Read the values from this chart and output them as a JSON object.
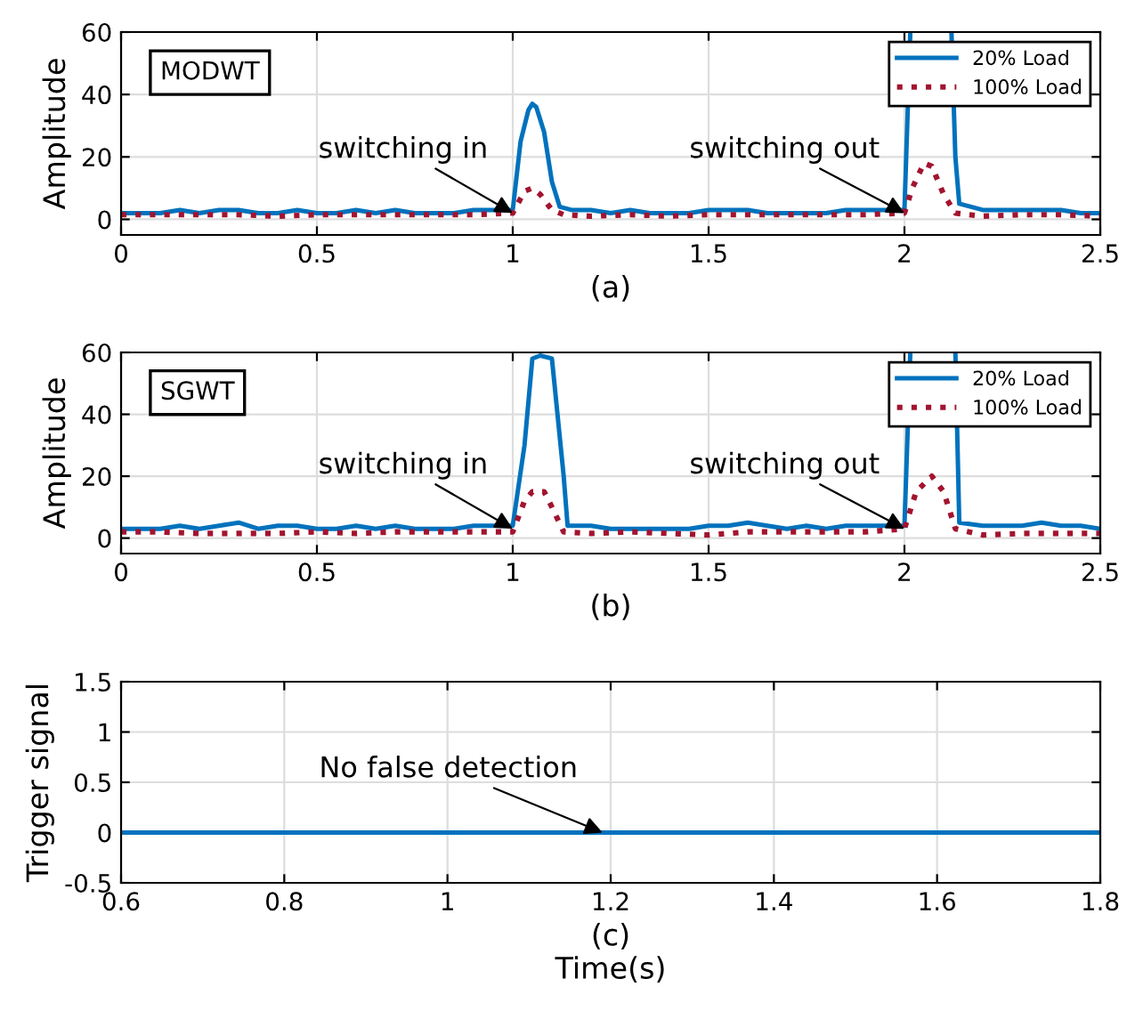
{
  "chart_data": [
    {
      "type": "line",
      "xlabel": "(a)",
      "ylabel": "Amplitude",
      "xlim": [
        0,
        2.5
      ],
      "ylim": [
        -5,
        60
      ],
      "xticks": [
        0,
        0.5,
        1,
        1.5,
        2,
        2.5
      ],
      "yticks": [
        0,
        20,
        40,
        60
      ],
      "grid": true,
      "legend": "top right",
      "annotations": [
        "MODWT",
        {
          "text": "switching in",
          "x": 1.0,
          "y": 2
        },
        {
          "text": "switching out",
          "x": 2.0,
          "y": 2
        }
      ],
      "series": [
        {
          "name": "20% Load",
          "color": "#0072bd",
          "line_style": "solid",
          "x": [
            0,
            0.05,
            0.1,
            0.15,
            0.2,
            0.25,
            0.3,
            0.35,
            0.4,
            0.45,
            0.5,
            0.55,
            0.6,
            0.65,
            0.7,
            0.75,
            0.8,
            0.85,
            0.9,
            0.95,
            1.0,
            1.02,
            1.04,
            1.05,
            1.06,
            1.08,
            1.1,
            1.12,
            1.15,
            1.2,
            1.25,
            1.3,
            1.35,
            1.4,
            1.45,
            1.5,
            1.55,
            1.6,
            1.65,
            1.7,
            1.75,
            1.8,
            1.85,
            1.9,
            1.95,
            2.0,
            2.015,
            2.06,
            2.12,
            2.13,
            2.14,
            2.2,
            2.25,
            2.3,
            2.35,
            2.4,
            2.45,
            2.5
          ],
          "values": [
            2,
            2,
            2,
            3,
            2,
            3,
            3,
            2,
            2,
            3,
            2,
            2,
            3,
            2,
            3,
            2,
            2,
            2,
            3,
            3,
            3,
            25,
            35,
            37,
            36,
            28,
            12,
            4,
            3,
            3,
            2,
            3,
            2,
            2,
            2,
            3,
            3,
            3,
            2,
            2,
            2,
            2,
            3,
            3,
            3,
            3,
            60,
            null,
            60,
            20,
            5,
            3,
            3,
            3,
            3,
            3,
            2,
            2
          ]
        },
        {
          "name": "100% Load",
          "color": "#a2142f",
          "line_style": "dotted",
          "x": [
            0,
            0.1,
            0.2,
            0.3,
            0.4,
            0.5,
            0.6,
            0.7,
            0.8,
            0.9,
            1.0,
            1.03,
            1.05,
            1.07,
            1.1,
            1.13,
            1.2,
            1.3,
            1.4,
            1.5,
            1.6,
            1.7,
            1.8,
            1.9,
            2.0,
            2.02,
            2.05,
            2.07,
            2.1,
            2.13,
            2.2,
            2.3,
            2.4,
            2.5
          ],
          "values": [
            1.5,
            1.5,
            1.5,
            1.5,
            1,
            1.5,
            1.5,
            1.5,
            1.5,
            1.5,
            2,
            9,
            10,
            8,
            3,
            1.5,
            1,
            1.5,
            1,
            1.5,
            1.5,
            1.5,
            1.5,
            1.5,
            2,
            10,
            18,
            17,
            8,
            2,
            1,
            1.5,
            1.5,
            1
          ]
        }
      ]
    },
    {
      "type": "line",
      "xlabel": "(b)",
      "ylabel": "Amplitude",
      "xlim": [
        0,
        2.5
      ],
      "ylim": [
        -5,
        60
      ],
      "xticks": [
        0,
        0.5,
        1,
        1.5,
        2,
        2.5
      ],
      "yticks": [
        0,
        20,
        40,
        60
      ],
      "grid": true,
      "legend": "top right",
      "annotations": [
        "SGWT",
        {
          "text": "switching in",
          "x": 1.0,
          "y": 3
        },
        {
          "text": "switching out",
          "x": 2.0,
          "y": 3
        }
      ],
      "series": [
        {
          "name": "20% Load",
          "color": "#0072bd",
          "line_style": "solid",
          "x": [
            0,
            0.05,
            0.1,
            0.15,
            0.2,
            0.25,
            0.3,
            0.35,
            0.4,
            0.45,
            0.5,
            0.55,
            0.6,
            0.65,
            0.7,
            0.75,
            0.8,
            0.85,
            0.9,
            0.95,
            1.0,
            1.03,
            1.05,
            1.07,
            1.1,
            1.13,
            1.14,
            1.2,
            1.25,
            1.3,
            1.35,
            1.4,
            1.45,
            1.5,
            1.55,
            1.6,
            1.65,
            1.7,
            1.75,
            1.8,
            1.85,
            1.9,
            1.95,
            2.0,
            2.015,
            2.07,
            2.13,
            2.14,
            2.2,
            2.25,
            2.3,
            2.35,
            2.4,
            2.45,
            2.5
          ],
          "values": [
            3,
            3,
            3,
            4,
            3,
            4,
            5,
            3,
            4,
            4,
            3,
            3,
            4,
            3,
            4,
            3,
            3,
            3,
            4,
            4,
            4,
            30,
            58,
            59,
            58,
            20,
            4,
            4,
            3,
            3,
            3,
            3,
            3,
            4,
            4,
            5,
            4,
            3,
            4,
            3,
            4,
            4,
            4,
            4,
            60,
            null,
            60,
            5,
            4,
            4,
            4,
            5,
            4,
            4,
            3
          ]
        },
        {
          "name": "100% Load",
          "color": "#a2142f",
          "line_style": "dotted",
          "x": [
            0,
            0.1,
            0.2,
            0.3,
            0.4,
            0.5,
            0.6,
            0.7,
            0.8,
            0.9,
            1.0,
            1.03,
            1.05,
            1.08,
            1.1,
            1.13,
            1.2,
            1.3,
            1.4,
            1.5,
            1.6,
            1.7,
            1.8,
            1.9,
            2.0,
            2.03,
            2.07,
            2.1,
            2.13,
            2.2,
            2.3,
            2.4,
            2.5
          ],
          "values": [
            2,
            2,
            1.5,
            1.5,
            1.5,
            2,
            1.5,
            2,
            2,
            2,
            2,
            12,
            15,
            15,
            10,
            2,
            1.5,
            2,
            1.5,
            1,
            2,
            2,
            2,
            2,
            3,
            15,
            20,
            15,
            3,
            1,
            1.5,
            1.5,
            1.5
          ]
        }
      ]
    },
    {
      "type": "line",
      "xlabel": "(c)\nTime(s)",
      "ylabel": "Trigger signal",
      "xlim": [
        0.6,
        1.8
      ],
      "ylim": [
        -0.5,
        1.5
      ],
      "xticks": [
        0.6,
        0.8,
        1,
        1.2,
        1.4,
        1.6,
        1.8
      ],
      "yticks": [
        -0.5,
        0,
        0.5,
        1,
        1.5
      ],
      "grid": true,
      "annotations": [
        {
          "text": "No false detection",
          "x": 1.19,
          "y": 0
        }
      ],
      "series": [
        {
          "color": "#0072bd",
          "line_style": "solid",
          "x": [
            0.6,
            1.8
          ],
          "values": [
            0,
            0
          ]
        }
      ]
    }
  ]
}
